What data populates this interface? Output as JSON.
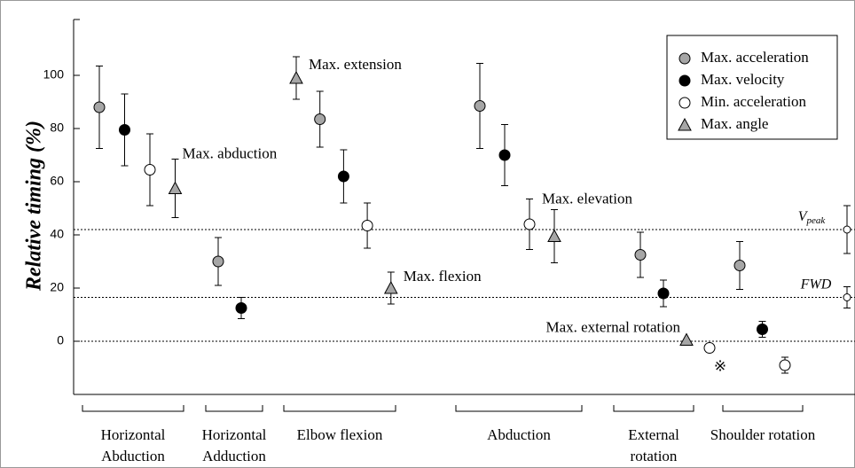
{
  "chart_data": {
    "type": "errorbar",
    "ylabel": "Relative timing (%)",
    "ylim": [
      -20,
      121
    ],
    "yticks": [
      0,
      20,
      40,
      60,
      80,
      100
    ],
    "series": [
      {
        "name": "Max. acceleration",
        "color": "#a6a6a6",
        "marker": "circle"
      },
      {
        "name": "Max. velocity",
        "color": "#000000",
        "marker": "circle"
      },
      {
        "name": "Min. acceleration",
        "color": "#ffffff",
        "marker": "circle"
      },
      {
        "name": "Max. angle",
        "color": "#a6a6a6",
        "marker": "triangle"
      }
    ],
    "legend": "upper right",
    "groups": [
      {
        "label": [
          "Horizontal",
          "Abduction"
        ],
        "points": [
          {
            "series": 0,
            "value": 88,
            "error": 15.5
          },
          {
            "series": 1,
            "value": 79.5,
            "error": 13.5
          },
          {
            "series": 2,
            "value": 64.5,
            "error": 13.5
          },
          {
            "series": 3,
            "value": 57.5,
            "error": 11,
            "annotation": "Max. abduction"
          }
        ]
      },
      {
        "label": [
          "Horizontal",
          "Adduction"
        ],
        "points": [
          {
            "series": 0,
            "value": 30,
            "error": 9
          },
          {
            "series": 1,
            "value": 12.5,
            "error": 4
          }
        ]
      },
      {
        "label": [
          "Elbow flexion"
        ],
        "points": [
          {
            "series": 3,
            "value": 99,
            "error": 8,
            "annotation": "Max. extension"
          },
          {
            "series": 0,
            "value": 83.5,
            "error": 10.5
          },
          {
            "series": 1,
            "value": 62,
            "error": 10
          },
          {
            "series": 2,
            "value": 43.5,
            "error": 8.5
          },
          {
            "series": 3,
            "value": 20,
            "error": 6,
            "annotation": "Max. flexion"
          }
        ]
      },
      {
        "label": [
          "Abduction"
        ],
        "points": [
          {
            "series": 0,
            "value": 88.5,
            "error": 16
          },
          {
            "series": 1,
            "value": 70,
            "error": 11.5
          },
          {
            "series": 2,
            "value": 44,
            "error": 9.5
          },
          {
            "series": 3,
            "value": 39.5,
            "error": 10,
            "annotation": "Max. elevation"
          }
        ]
      },
      {
        "label": [
          "External",
          "rotation"
        ],
        "points": [
          {
            "series": 0,
            "value": 32.5,
            "error": 8.5
          },
          {
            "series": 1,
            "value": 18,
            "error": 5
          },
          {
            "series": 3,
            "value": 0.5,
            "error": 0,
            "annotation": "Max. external rotation"
          },
          {
            "series": 2,
            "value": -2.5,
            "error": 1,
            "annotation": "※"
          }
        ]
      },
      {
        "label": [
          "Shoulder rotation"
        ],
        "points": [
          {
            "series": 0,
            "value": 28.5,
            "error": 9
          },
          {
            "series": 1,
            "value": 4.5,
            "error": 3
          },
          {
            "series": 2,
            "value": -9,
            "error": 3
          }
        ]
      }
    ],
    "reference_lines": [
      {
        "label": "V",
        "subscript": "peak",
        "value": 42,
        "error": 9
      },
      {
        "label": "FWD",
        "value": 16.5,
        "error": 4
      },
      {
        "value": 0
      }
    ]
  }
}
